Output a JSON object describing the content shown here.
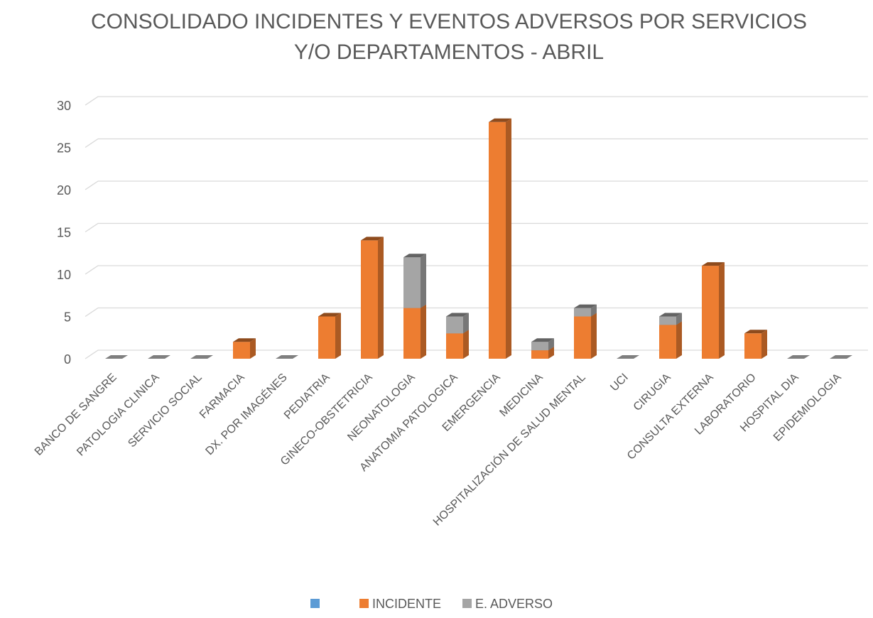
{
  "chart_data": {
    "type": "bar3d_stacked",
    "title": [
      "CONSOLIDADO INCIDENTES Y EVENTOS ADVERSOS POR SERVICIOS",
      "Y/O DEPARTAMENTOS - ABRIL"
    ],
    "categories": [
      "BANCO DE SANGRE",
      "PATOLOGIA CLINICA",
      "SERVICIO SOCIAL",
      "FARMACIA",
      "DX. POR IMAGÉNES",
      "PEDIATRIA",
      "GINECO-OBSTETRICIA",
      "NEONATOLOGIA",
      "ANATOMIA PATOLOGICA",
      "EMERGENCIA",
      "MEDICINA",
      "HOSPITALIZACIÓN DE SALUD MENTAL",
      "UCI",
      "CIRUGIA",
      "CONSULTA EXTERNA",
      "LABORATORIO",
      "HOSPITAL DIA",
      "EPIDEMIOLOGIA"
    ],
    "series": [
      {
        "color": "#5b9bd5",
        "values": [
          0,
          0,
          0,
          0,
          0,
          0,
          0,
          0,
          0,
          0,
          0,
          0,
          0,
          0,
          0,
          0,
          0,
          0
        ]
      },
      {
        "name": "INCIDENTE",
        "color": "#ed7d31",
        "values": [
          0,
          0,
          0,
          2,
          0,
          5,
          14,
          6,
          3,
          28,
          1,
          5,
          0,
          4,
          11,
          3,
          0,
          0
        ]
      },
      {
        "name": "E. ADVERSO",
        "color": "#a5a5a5",
        "values": [
          0,
          0,
          0,
          0,
          0,
          0,
          0,
          6,
          2,
          0,
          1,
          1,
          0,
          1,
          0,
          0,
          0,
          0
        ]
      }
    ],
    "ylim": [
      0,
      30
    ],
    "yticks": [
      0,
      5,
      10,
      15,
      20,
      25,
      30
    ],
    "grid": true,
    "legend": "bottom"
  }
}
